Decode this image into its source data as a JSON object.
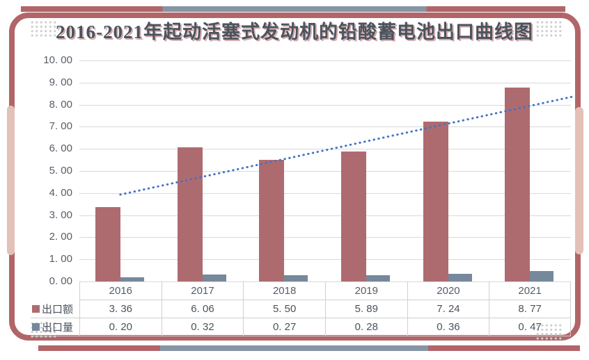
{
  "title": {
    "text": "2016-2021年起动活塞式发动机的铅酸蓄电池出口曲线图"
  },
  "theme": {
    "maroon": "#b26568",
    "blue-gray": "#8695a4",
    "bar-red": "#ae6b6f",
    "bar-gray": "#76889b",
    "capsule": "#e3c0b8",
    "grid": "#d9d9d9",
    "tborder": "#cfcfcf",
    "dots": "#cfcfcf",
    "text": "#555d66",
    "text-dark": "#4a525c",
    "title-text": "#4a545e",
    "trend": "#4472c4"
  },
  "chart_data": {
    "type": "bar",
    "title": "2016-2021年起动活塞式发动机的铅酸蓄电池出口曲线图",
    "categories": [
      "2016",
      "2017",
      "2018",
      "2019",
      "2020",
      "2021"
    ],
    "series": [
      {
        "name": "出口额",
        "key": "export-value",
        "type": "bar",
        "color": "#ae6b6f",
        "values": [
          3.36,
          6.06,
          5.5,
          5.89,
          7.24,
          8.77
        ],
        "display": [
          "3. 36",
          "6. 06",
          "5. 50",
          "5. 89",
          "7. 24",
          "8. 77"
        ]
      },
      {
        "name": "出口量",
        "key": "export-volume",
        "type": "bar",
        "color": "#76889b",
        "values": [
          0.2,
          0.32,
          0.27,
          0.28,
          0.36,
          0.47
        ],
        "display": [
          "0. 20",
          "0. 32",
          "0. 27",
          "0. 28",
          "0. 36",
          "0. 47"
        ]
      }
    ],
    "trendline": {
      "type": "linear",
      "series": "出口额",
      "style": "dotted",
      "color": "#4472c4",
      "value_at_first_category": 3.93,
      "value_at_plot_right_edge": 8.36
    },
    "xlabel": "",
    "ylabel": "",
    "ylim": [
      0,
      10
    ],
    "ytick_step": 1.0,
    "ytick_labels": [
      "10. 00",
      "9. 00",
      "8. 00",
      "7. 00",
      "6. 00",
      "5. 00",
      "4. 00",
      "3. 00",
      "2. 00",
      "1. 00",
      "0. 00"
    ],
    "grid": true,
    "legend_position": "table-rows-left"
  }
}
